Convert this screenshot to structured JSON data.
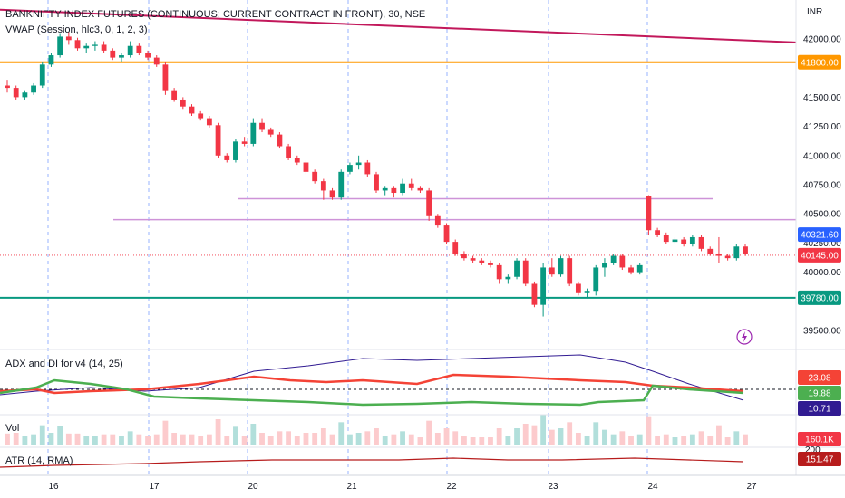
{
  "header": {
    "title": "BANKNIFTY INDEX FUTURES (CONTINUOUS: CURRENT CONTRACT IN FRONT), 30, NSE",
    "vwap_label": "VWAP (Session, hlc3, 0, 1, 2, 3)",
    "currency": "INR"
  },
  "colors": {
    "up": "#26a69a",
    "down": "#ef5350",
    "up_bright": "#089981",
    "down_bright": "#f23645",
    "trendline": "#c2185b",
    "orange_line": "#ff9800",
    "green_line": "#089981",
    "purple_line": "#ce93d8",
    "adx": "#311b92",
    "di_plus": "#4caf50",
    "di_minus": "#f44336",
    "atr": "#b71c1c",
    "session": "#2962ff"
  },
  "chart_data": {
    "type": "candlestick",
    "price_axis": {
      "ticks": [
        39500,
        39750,
        40000,
        40250,
        40500,
        40750,
        41000,
        41250,
        41500,
        41750,
        42000
      ],
      "tick_labels": [
        "39500.00",
        "",
        "40000.00",
        "40250.00",
        "40500.00",
        "40750.00",
        "41000.00",
        "41250.00",
        "41500.00",
        "",
        "42000.00"
      ],
      "ylim": [
        39350,
        42250
      ]
    },
    "x_axis": {
      "labels": [
        "16",
        "17",
        "20",
        "21",
        "22",
        "23",
        "24",
        "27"
      ]
    },
    "levels": [
      {
        "name": "resistance",
        "value": 41800,
        "label": "41800.00"
      },
      {
        "name": "support",
        "value": 39780,
        "label": "39780.00"
      },
      {
        "name": "vwap",
        "value": 40321.6,
        "label": "40321.60"
      },
      {
        "name": "last-price",
        "value": 40145,
        "label": "40145.00"
      }
    ],
    "horizontal_rays": [
      {
        "value": 40630,
        "from_day": "20",
        "to_day": "24"
      },
      {
        "value": 40450,
        "from_day": "17",
        "to_day": "27"
      }
    ],
    "trendline": {
      "from": 42250,
      "to": 41970
    },
    "candles": [
      [
        41600,
        41650,
        41540,
        41580
      ],
      [
        41580,
        41600,
        41480,
        41500
      ],
      [
        41500,
        41560,
        41480,
        41540
      ],
      [
        41540,
        41620,
        41520,
        41600
      ],
      [
        41600,
        41800,
        41580,
        41780
      ],
      [
        41780,
        41880,
        41760,
        41860
      ],
      [
        41860,
        42050,
        41840,
        42020
      ],
      [
        42020,
        42060,
        41950,
        41990
      ],
      [
        41990,
        42010,
        41900,
        41920
      ],
      [
        41920,
        41960,
        41880,
        41940
      ],
      [
        41940,
        41980,
        41900,
        41950
      ],
      [
        41950,
        41980,
        41880,
        41900
      ],
      [
        41900,
        41920,
        41820,
        41840
      ],
      [
        41840,
        41880,
        41800,
        41860
      ],
      [
        41860,
        41980,
        41840,
        41940
      ],
      [
        41940,
        41960,
        41860,
        41880
      ],
      [
        41880,
        41900,
        41820,
        41840
      ],
      [
        41840,
        41860,
        41760,
        41780
      ],
      [
        41780,
        41800,
        41520,
        41560
      ],
      [
        41560,
        41580,
        41460,
        41480
      ],
      [
        41480,
        41500,
        41400,
        41420
      ],
      [
        41420,
        41440,
        41340,
        41360
      ],
      [
        41360,
        41380,
        41300,
        41320
      ],
      [
        41320,
        41340,
        41240,
        41260
      ],
      [
        41260,
        41280,
        40980,
        41000
      ],
      [
        41000,
        41020,
        40940,
        40960
      ],
      [
        40960,
        41140,
        40940,
        41120
      ],
      [
        41120,
        41160,
        41080,
        41100
      ],
      [
        41100,
        41320,
        41080,
        41280
      ],
      [
        41280,
        41320,
        41200,
        41220
      ],
      [
        41220,
        41240,
        41160,
        41180
      ],
      [
        41180,
        41200,
        41060,
        41080
      ],
      [
        41080,
        41100,
        40960,
        40980
      ],
      [
        40980,
        41000,
        40920,
        40940
      ],
      [
        40940,
        40960,
        40840,
        40860
      ],
      [
        40860,
        40880,
        40760,
        40780
      ],
      [
        40780,
        40800,
        40620,
        40700
      ],
      [
        40700,
        40720,
        40620,
        40640
      ],
      [
        40640,
        40880,
        40620,
        40860
      ],
      [
        40860,
        40940,
        40840,
        40920
      ],
      [
        40920,
        41000,
        40880,
        40940
      ],
      [
        40940,
        40960,
        40820,
        40840
      ],
      [
        40840,
        40860,
        40680,
        40700
      ],
      [
        40700,
        40740,
        40660,
        40720
      ],
      [
        40720,
        40740,
        40640,
        40680
      ],
      [
        40680,
        40800,
        40660,
        40760
      ],
      [
        40760,
        40800,
        40700,
        40720
      ],
      [
        40720,
        40740,
        40680,
        40700
      ],
      [
        40700,
        40720,
        40440,
        40480
      ],
      [
        40480,
        40500,
        40380,
        40400
      ],
      [
        40400,
        40420,
        40240,
        40260
      ],
      [
        40260,
        40280,
        40140,
        40160
      ],
      [
        40160,
        40180,
        40100,
        40120
      ],
      [
        40120,
        40140,
        40080,
        40100
      ],
      [
        40100,
        40120,
        40060,
        40080
      ],
      [
        40080,
        40100,
        40040,
        40060
      ],
      [
        40060,
        40080,
        39900,
        39940
      ],
      [
        39940,
        39980,
        39900,
        39960
      ],
      [
        39960,
        40120,
        39940,
        40100
      ],
      [
        40100,
        40120,
        39880,
        39900
      ],
      [
        39900,
        39920,
        39700,
        39720
      ],
      [
        39720,
        40080,
        39620,
        40040
      ],
      [
        40040,
        40120,
        39960,
        39980
      ],
      [
        39980,
        40140,
        39960,
        40120
      ],
      [
        40120,
        40140,
        39880,
        39900
      ],
      [
        39900,
        39920,
        39800,
        39820
      ],
      [
        39820,
        39860,
        39780,
        39840
      ],
      [
        39840,
        40060,
        39800,
        40040
      ],
      [
        40040,
        40120,
        39960,
        40080
      ],
      [
        40080,
        40160,
        40060,
        40140
      ],
      [
        40140,
        40160,
        40020,
        40040
      ],
      [
        40040,
        40060,
        39980,
        40000
      ],
      [
        40000,
        40080,
        39980,
        40060
      ],
      [
        40650,
        40660,
        40320,
        40360
      ],
      [
        40360,
        40380,
        40300,
        40320
      ],
      [
        40320,
        40340,
        40240,
        40260
      ],
      [
        40260,
        40300,
        40240,
        40280
      ],
      [
        40280,
        40300,
        40220,
        40240
      ],
      [
        40240,
        40320,
        40220,
        40300
      ],
      [
        40300,
        40320,
        40180,
        40200
      ],
      [
        40200,
        40220,
        40140,
        40160
      ],
      [
        40160,
        40300,
        40080,
        40140
      ],
      [
        40140,
        40160,
        40100,
        40120
      ],
      [
        40120,
        40240,
        40100,
        40220
      ],
      [
        40220,
        40240,
        40140,
        40160
      ]
    ],
    "indicators": {
      "adx_panel": {
        "label": "ADX and DI for v4 (14, 25)",
        "values": [
          {
            "name": "di-minus",
            "label": "23.08"
          },
          {
            "name": "di-plus",
            "label": "19.88"
          },
          {
            "name": "adx",
            "label": "10.71"
          }
        ],
        "threshold": 20
      },
      "volume_panel": {
        "label": "Vol",
        "value_label": "160.1K",
        "scale_label": "200"
      },
      "atr_panel": {
        "label": "ATR (14, RMA)",
        "value_label": "151.47"
      }
    }
  }
}
